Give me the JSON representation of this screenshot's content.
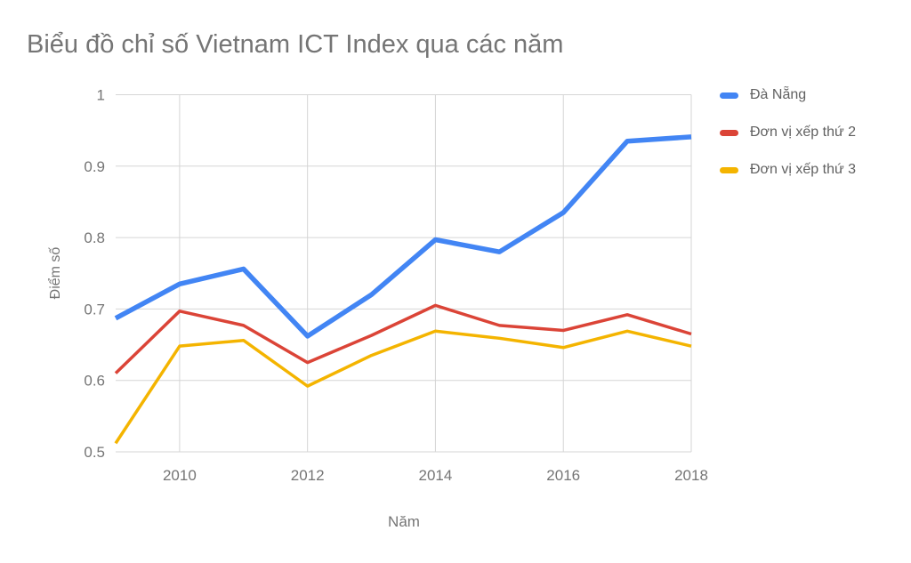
{
  "chart_data": {
    "type": "line",
    "title": "Biểu đồ chỉ số Vietnam ICT Index qua các năm",
    "xlabel": "Năm",
    "ylabel": "Điểm số",
    "x": [
      2009,
      2010,
      2011,
      2012,
      2013,
      2014,
      2015,
      2016,
      2017,
      2018
    ],
    "x_ticks": [
      2010,
      2012,
      2014,
      2016,
      2018
    ],
    "x_tick_labels": [
      "2010",
      "2012",
      "2014",
      "2016",
      "2018"
    ],
    "y_ticks": [
      0.5,
      0.6,
      0.7,
      0.8,
      0.9,
      1
    ],
    "y_tick_labels": [
      "0.5",
      "0.6",
      "0.7",
      "0.8",
      "0.9",
      "1"
    ],
    "ylim": [
      0.5,
      1
    ],
    "grid": true,
    "legend_position": "right",
    "series": [
      {
        "name": "Đà Nẵng",
        "color": "#4285F4",
        "line_width": 5.5,
        "values": [
          0.687,
          0.735,
          0.756,
          0.662,
          0.72,
          0.797,
          0.78,
          0.835,
          0.935,
          0.941
        ]
      },
      {
        "name": "Đơn vị xếp thứ 2",
        "color": "#DB4437",
        "line_width": 3.5,
        "values": [
          0.61,
          0.697,
          0.677,
          0.625,
          0.663,
          0.705,
          0.677,
          0.67,
          0.692,
          0.665
        ]
      },
      {
        "name": "Đơn vị xếp thứ 3",
        "color": "#F4B400",
        "line_width": 3.5,
        "values": [
          0.512,
          0.648,
          0.656,
          0.592,
          0.635,
          0.669,
          0.659,
          0.646,
          0.669,
          0.648
        ]
      }
    ],
    "colors": {
      "title_text": "#757575",
      "axis_text": "#757575",
      "legend_text": "#616161",
      "gridline": "#D5D5D5",
      "background": "#FFFFFF"
    }
  }
}
